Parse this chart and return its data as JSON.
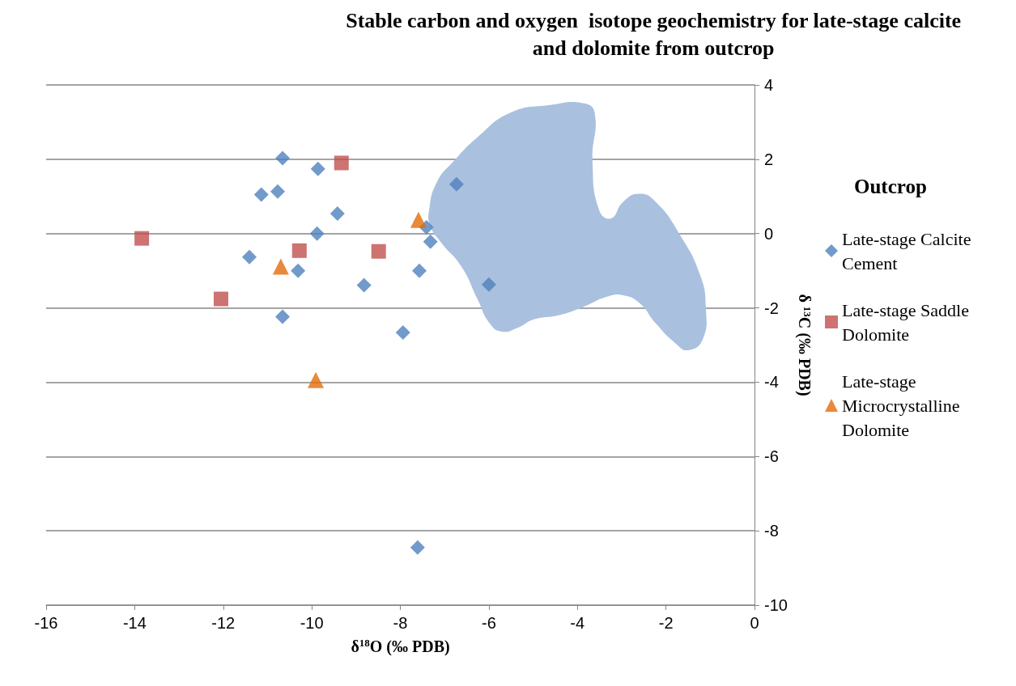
{
  "chart_data": {
    "type": "scatter",
    "title": "Stable carbon and oxygen  isotope geochemistry for late-stage calcite\nand dolomite from outcrop",
    "xlabel": "δ$^{18}$O (‰ PDB)",
    "ylabel": "δ $^{13}$C (‰ PDB)",
    "legend_title": "Outcrop",
    "xlim": [
      -16,
      0
    ],
    "xticks": [
      -16,
      -14,
      -12,
      -10,
      -8,
      -6,
      -4,
      -2,
      0
    ],
    "ylim": [
      -10,
      4
    ],
    "yticks": [
      -10,
      -8,
      -6,
      -4,
      -2,
      0,
      2,
      4
    ],
    "grid": "y",
    "legend": "right",
    "series": [
      {
        "type": "area",
        "color": "#a9c1df",
        "x": [
          -7.35,
          -7.17,
          -6.8,
          -6.26,
          -5.52,
          -4.61,
          -3.88,
          -3.61,
          -3.66,
          -3.51,
          -3.24,
          -2.97,
          -2.6,
          -2.23,
          -1.69,
          -1.23,
          -1.1,
          -1.17,
          -1.5,
          -1.78,
          -2.23,
          -2.6,
          -2.97,
          -3.33,
          -3.88,
          -4.43,
          -4.98,
          -5.34,
          -5.71,
          -5.98,
          -6.26,
          -6.62,
          -7.08,
          -7.32
        ],
        "values": [
          0.63,
          1.39,
          1.94,
          2.59,
          3.25,
          3.46,
          3.51,
          3.25,
          1.94,
          0.63,
          0.41,
          0.85,
          1.07,
          0.85,
          -0.02,
          -1.11,
          -1.98,
          -2.85,
          -3.14,
          -2.96,
          -2.42,
          -1.87,
          -1.66,
          -1.7,
          -1.98,
          -2.2,
          -2.31,
          -2.53,
          -2.64,
          -2.42,
          -1.76,
          -0.89,
          -0.24,
          0.2
        ]
      },
      {
        "name": "Late-stage Calcite Cement",
        "color": "#4f81bd",
        "marker": "diamond",
        "x": [
          -10.66,
          -9.86,
          -11.14,
          -10.77,
          -9.42,
          -9.88,
          -11.41,
          -10.31,
          -10.66,
          -8.82,
          -7.94,
          -7.57,
          -7.41,
          -7.32,
          -6.73,
          -6.0,
          -7.61
        ],
        "values": [
          2.03,
          1.74,
          1.05,
          1.13,
          0.54,
          0.0,
          -0.63,
          -1.0,
          -2.24,
          -1.39,
          -2.66,
          -1.0,
          0.17,
          -0.22,
          1.33,
          -1.37,
          -8.45
        ]
      },
      {
        "name": "Late-stage Saddle Dolomite",
        "color": "#c0504d",
        "marker": "square",
        "x": [
          -13.84,
          -9.33,
          -10.28,
          -8.49,
          -12.05
        ],
        "values": [
          -0.13,
          1.9,
          -0.46,
          -0.48,
          -1.76
        ]
      },
      {
        "name": "Late-stage Microcrystalline Dolomite",
        "color": "#e46c0a",
        "marker": "triangle",
        "x": [
          -10.7,
          -7.59,
          -9.91
        ],
        "values": [
          -0.89,
          0.37,
          -3.94
        ]
      }
    ]
  }
}
